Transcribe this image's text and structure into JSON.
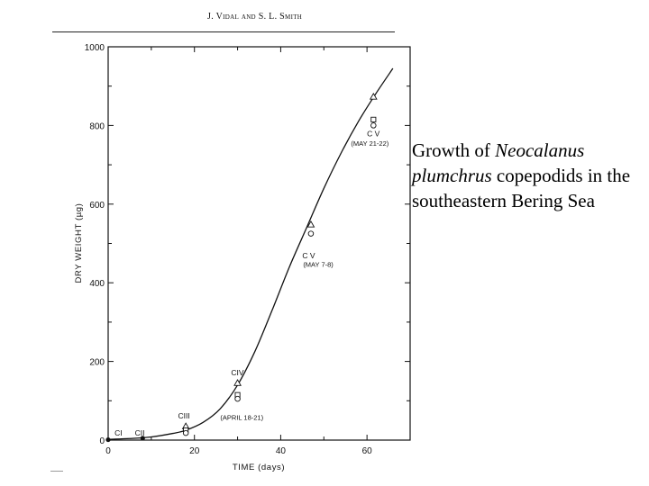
{
  "header": {
    "authors": "J. Vidal and S. L. Smith"
  },
  "caption": {
    "part1": "Growth of ",
    "italic": "Neocalanus plumchrus",
    "part2": " copepodids in the southeastern Bering Sea"
  },
  "chart_data": {
    "type": "scatter",
    "xlabel": "TIME (days)",
    "ylabel": "DRY WEIGHT (µg)",
    "xlim": [
      0,
      70
    ],
    "ylim": [
      0,
      1000
    ],
    "xticks": [
      0,
      20,
      40,
      60
    ],
    "yticks": [
      0,
      200,
      400,
      600,
      800,
      1000
    ],
    "grid": false,
    "points": [
      {
        "x": 0,
        "y": 1,
        "marker": "filled"
      },
      {
        "x": 8,
        "y": 5,
        "marker": "filled"
      },
      {
        "x": 18,
        "y": 35,
        "marker": "triangle"
      },
      {
        "x": 18,
        "y": 25,
        "marker": "square"
      },
      {
        "x": 18,
        "y": 18,
        "marker": "circle"
      },
      {
        "x": 30,
        "y": 145,
        "marker": "triangle"
      },
      {
        "x": 30,
        "y": 115,
        "marker": "square"
      },
      {
        "x": 30,
        "y": 105,
        "marker": "circle"
      },
      {
        "x": 47,
        "y": 548,
        "marker": "triangle"
      },
      {
        "x": 47,
        "y": 525,
        "marker": "circle"
      },
      {
        "x": 61.5,
        "y": 873,
        "marker": "triangle"
      },
      {
        "x": 61.5,
        "y": 815,
        "marker": "square"
      },
      {
        "x": 61.5,
        "y": 800,
        "marker": "circle"
      }
    ],
    "curve": {
      "x": [
        0,
        5,
        10,
        15,
        18,
        22,
        26,
        30,
        34,
        38,
        42,
        46,
        50,
        54,
        58,
        62,
        66
      ],
      "y": [
        2,
        4,
        8,
        17,
        25,
        45,
        80,
        140,
        225,
        330,
        440,
        540,
        640,
        730,
        810,
        880,
        945
      ]
    },
    "annotations": [
      {
        "text": "CI",
        "x": 1.5,
        "y": 12,
        "kind": "stage"
      },
      {
        "text": "CII",
        "x": 6.2,
        "y": 12,
        "kind": "stage"
      },
      {
        "text": "CIII",
        "x": 16.2,
        "y": 55,
        "kind": "stage"
      },
      {
        "text": "(APRIL 18-21)",
        "x": 26,
        "y": 52,
        "kind": "date"
      },
      {
        "text": "CIV",
        "x": 28.5,
        "y": 165,
        "kind": "stage"
      },
      {
        "text": "C V",
        "x": 45,
        "y": 462,
        "kind": "stage"
      },
      {
        "text": "(MAY 7-8)",
        "x": 45.2,
        "y": 440,
        "kind": "date"
      },
      {
        "text": "C V",
        "x": 60,
        "y": 772,
        "kind": "stage"
      },
      {
        "text": "(MAY 21-22)",
        "x": 56.3,
        "y": 748,
        "kind": "date"
      }
    ]
  }
}
